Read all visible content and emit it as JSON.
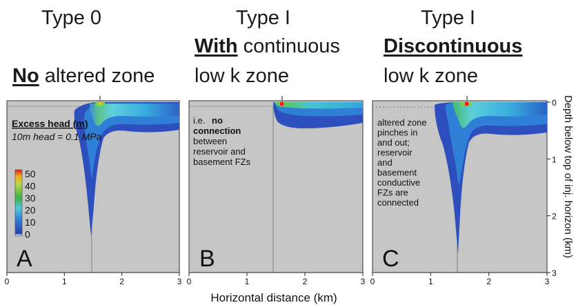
{
  "headings": {
    "a_line1": "Type 0",
    "a_line2_emph": "No",
    "a_line2_rest": " altered zone",
    "b_line1": "Type I",
    "b_line2_emph": "With",
    "b_line2_rest": " continuous",
    "b_line3": "low k zone",
    "c_line1": "Type I",
    "c_line2_emph": "Discontinuous",
    "c_line3": "low k zone"
  },
  "panels": [
    {
      "letter": "A"
    },
    {
      "letter": "B",
      "note_pre": "i.e.",
      "note_bold": [
        "no",
        "connection"
      ],
      "note_rest": [
        "between",
        "reservoir and",
        "basement FZs"
      ]
    },
    {
      "letter": "C",
      "note_lines": [
        "altered zone",
        "pinches in",
        "and out;",
        "reservoir",
        "and",
        "basement",
        "conductive",
        "FZs are",
        "connected"
      ]
    }
  ],
  "legend": {
    "title": "Excess head (m)",
    "subtitle": "10m head = 0.1 MPa",
    "ticks": [
      "50",
      "40",
      "30",
      "20",
      "10",
      "0"
    ]
  },
  "axes": {
    "x_label": "Horizontal distance (km)",
    "x_ticks": [
      "0",
      "1",
      "2",
      "3"
    ],
    "y_label": "Depth below top of inj. horizon (km)",
    "y_ticks": [
      "0",
      "1",
      "2",
      "3"
    ]
  },
  "colors": {
    "background": "#c6c6c6",
    "plume_deep": "#2549b8",
    "plume_mid": "#33a9d8",
    "plume_light": "#7fd7e6",
    "hot_green": "#4cb84a",
    "hot_red": "#e02020"
  }
}
